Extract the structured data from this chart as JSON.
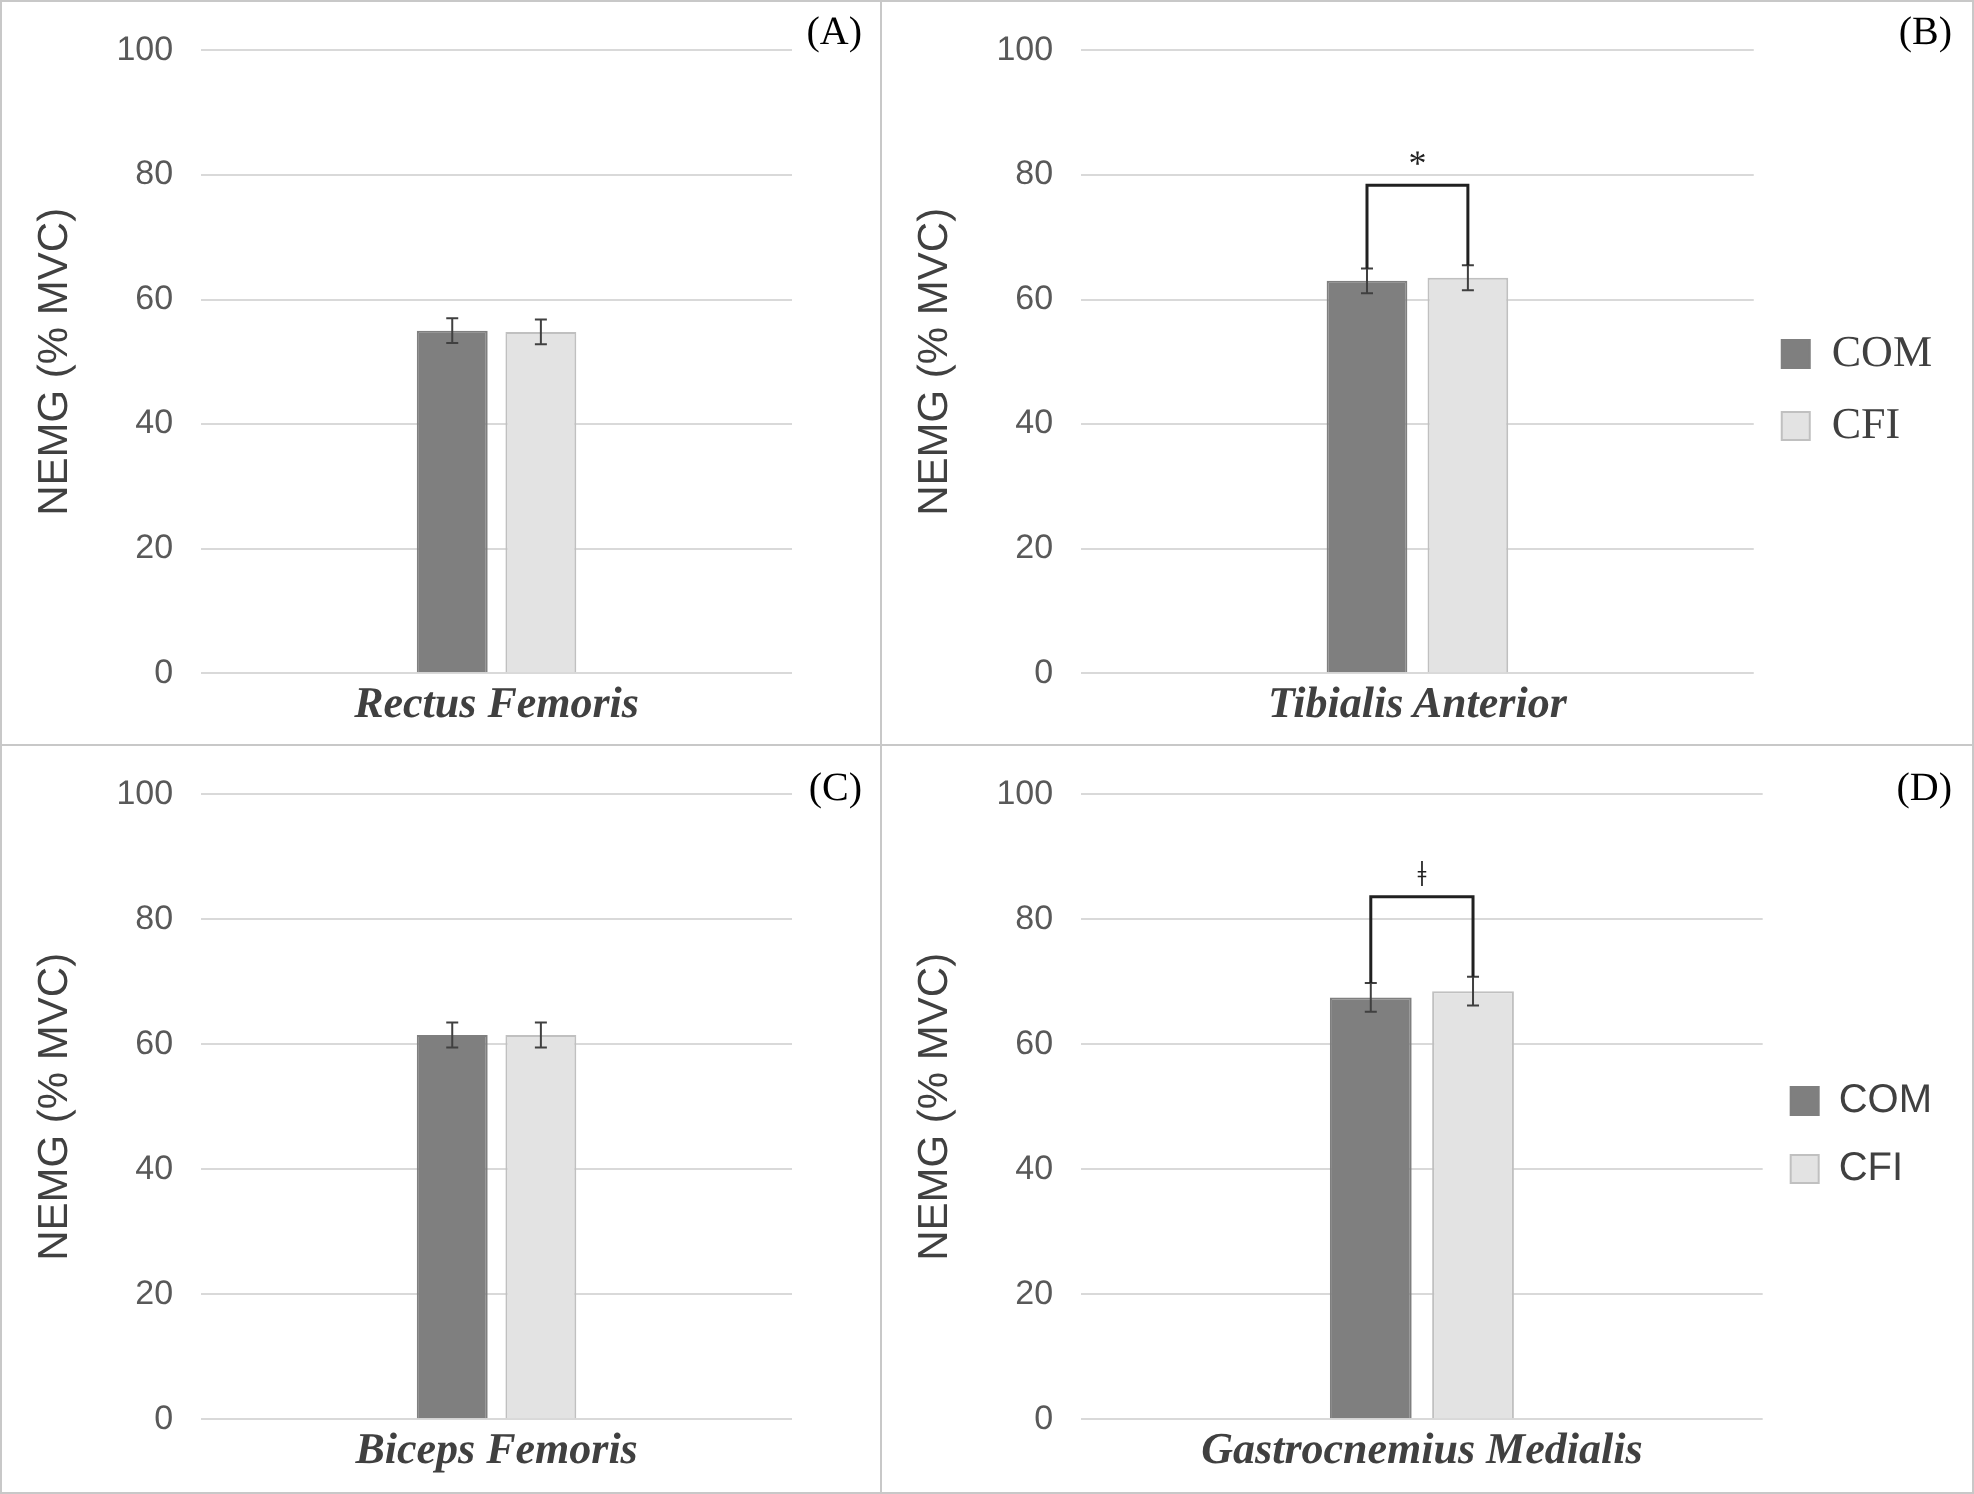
{
  "chart_data": [
    {
      "type": "bar",
      "ylabel": "NEMG (% MVC)",
      "categories": [
        "Rectus Femoris"
      ],
      "series": [
        {
          "color": "#7f7f7f",
          "values": [
            55
          ],
          "errors": [
            2
          ]
        },
        {
          "color": "#e3e3e3",
          "values": [
            54.8
          ],
          "errors": [
            2
          ]
        }
      ],
      "ylim": [
        0,
        100
      ],
      "yticks": [
        0,
        20,
        40,
        60,
        80,
        100
      ],
      "grid": "y",
      "legend": false,
      "annotations": [
        "(A)"
      ]
    },
    {
      "type": "bar",
      "ylabel": "NEMG (% MVC)",
      "categories": [
        "Tibialis Anterior"
      ],
      "series": [
        {
          "name": "COM",
          "color": "#7f7f7f",
          "values": [
            63
          ],
          "errors": [
            2
          ]
        },
        {
          "name": "CFI",
          "color": "#e3e3e3",
          "values": [
            63.5
          ],
          "errors": [
            2
          ]
        }
      ],
      "ylim": [
        0,
        100
      ],
      "yticks": [
        0,
        20,
        40,
        60,
        80,
        100
      ],
      "grid": "y",
      "legend": "right",
      "annotations": [
        "(B)",
        "*"
      ]
    },
    {
      "type": "bar",
      "ylabel": "NEMG (% MVC)",
      "categories": [
        "Biceps Femoris"
      ],
      "series": [
        {
          "color": "#7f7f7f",
          "values": [
            61.5
          ],
          "errors": [
            2
          ]
        },
        {
          "color": "#e3e3e3",
          "values": [
            61.5
          ],
          "errors": [
            2
          ]
        }
      ],
      "ylim": [
        0,
        100
      ],
      "yticks": [
        0,
        20,
        40,
        60,
        80,
        100
      ],
      "grid": "y",
      "legend": false,
      "annotations": [
        "(C)"
      ]
    },
    {
      "type": "bar",
      "ylabel": "NEMG (% MVC)",
      "categories": [
        "Gastrocnemius Medialis"
      ],
      "series": [
        {
          "name": "COM",
          "color": "#7f7f7f",
          "values": [
            67.5
          ],
          "errors": [
            2.3
          ]
        },
        {
          "name": "CFI",
          "color": "#e3e3e3",
          "values": [
            68.5
          ],
          "errors": [
            2.3
          ]
        }
      ],
      "ylim": [
        0,
        100
      ],
      "yticks": [
        0,
        20,
        40,
        60,
        80,
        100
      ],
      "grid": "y",
      "legend": "right",
      "annotations": [
        "(D)",
        "ǂ"
      ]
    }
  ]
}
